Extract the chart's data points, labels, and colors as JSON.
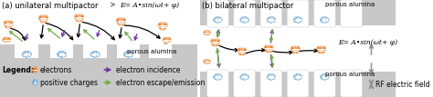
{
  "title_a": "(a) unilateral multipactor",
  "title_b": "(b) bilateral multipactor",
  "eq_a": "E= A•sin(ωt+ φ)",
  "eq_b": "E= A•sin(ωt+ φ)",
  "legend_electrons": "electrons",
  "legend_positive": "positive charges",
  "legend_incidence": "electron incidence",
  "legend_emission": "electron escape/emission",
  "legend_rf": "RF electric field",
  "label_porous_a": "porous alumina",
  "label_porous_b1": "porous alumina",
  "label_porous_b2": "porous alumina",
  "electron_color": "#e87820",
  "positive_color": "#5599cc",
  "incidence_color": "#7030a0",
  "emission_color": "#70ad47",
  "surface_color": "#c8c8c8",
  "arrow_color": "#555555",
  "title_fontsize": 6.0,
  "label_fontsize": 5.0,
  "legend_fontsize": 5.5,
  "eq_fontsize": 5.5
}
